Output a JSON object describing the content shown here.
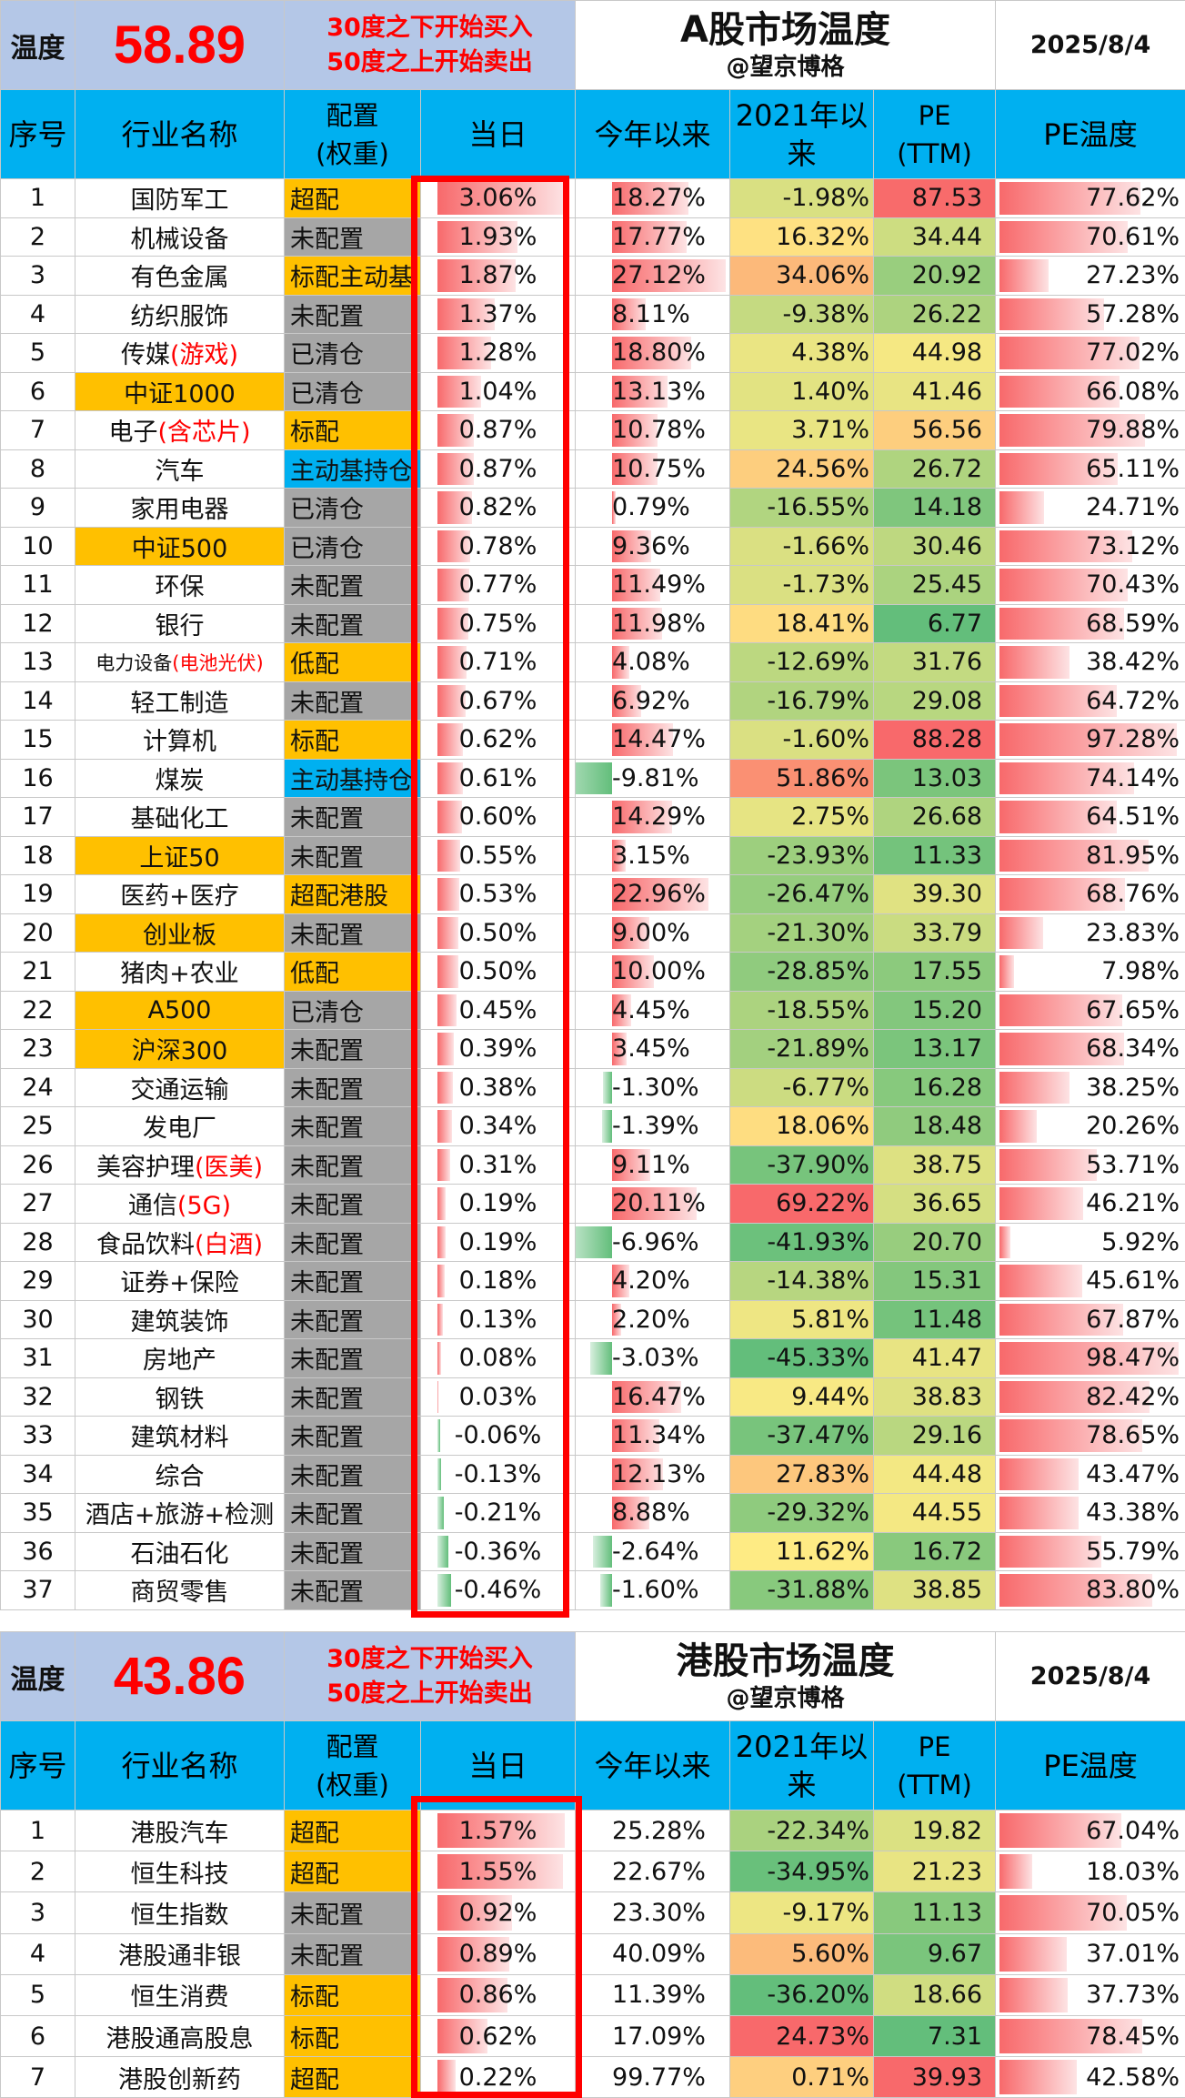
{
  "a_share": {
    "header": {
      "label": "温度",
      "temperature": "58.89",
      "rule_buy": "30度之下开始买入",
      "rule_sell": "50度之上开始卖出",
      "title": "A股市场温度",
      "author": "@望京博格",
      "date": "2025/8/4"
    },
    "columns": [
      "序号",
      "行业名称",
      "配置\n(权重)",
      "当日",
      "今年以来",
      "2021年以来",
      "PE\n(TTM)",
      "PE温度"
    ],
    "rows": [
      {
        "no": "1",
        "name": "国防军工",
        "cfg": "超配",
        "day": "3.06%",
        "ytd": "18.27%",
        "since2021": "-1.98%",
        "pe": "87.53",
        "pe_temp": "77.62%",
        "cfg_color": "gold",
        "name_hl": false
      },
      {
        "no": "2",
        "name": "机械设备",
        "cfg": "未配置",
        "day": "1.93%",
        "ytd": "17.77%",
        "since2021": "16.32%",
        "pe": "34.44",
        "pe_temp": "70.61%",
        "cfg_color": "gray",
        "name_hl": false
      },
      {
        "no": "3",
        "name": "有色金属",
        "cfg": "标配主动基",
        "day": "1.87%",
        "ytd": "27.12%",
        "since2021": "34.06%",
        "pe": "20.92",
        "pe_temp": "27.23%",
        "cfg_color": "gold",
        "name_hl": false
      },
      {
        "no": "4",
        "name": "纺织服饰",
        "cfg": "未配置",
        "day": "1.37%",
        "ytd": "8.11%",
        "since2021": "-9.38%",
        "pe": "26.22",
        "pe_temp": "57.28%",
        "cfg_color": "gray",
        "name_hl": false
      },
      {
        "no": "5",
        "name": "传媒",
        "name_red": "(游戏)",
        "cfg": "已清仓",
        "day": "1.28%",
        "ytd": "18.80%",
        "since2021": "4.38%",
        "pe": "44.98",
        "pe_temp": "77.02%",
        "cfg_color": "gray",
        "name_hl": false
      },
      {
        "no": "6",
        "name": "中证1000",
        "cfg": "已清仓",
        "day": "1.04%",
        "ytd": "13.13%",
        "since2021": "1.40%",
        "pe": "41.46",
        "pe_temp": "66.08%",
        "cfg_color": "gray",
        "name_hl": true
      },
      {
        "no": "7",
        "name": "电子",
        "name_red": "(含芯片)",
        "cfg": "标配",
        "day": "0.87%",
        "ytd": "10.78%",
        "since2021": "3.71%",
        "pe": "56.56",
        "pe_temp": "79.88%",
        "cfg_color": "gold",
        "name_hl": false
      },
      {
        "no": "8",
        "name": "汽车",
        "cfg": "主动基持仓",
        "day": "0.87%",
        "ytd": "10.75%",
        "since2021": "24.56%",
        "pe": "26.72",
        "pe_temp": "65.11%",
        "cfg_color": "blue",
        "name_hl": false
      },
      {
        "no": "9",
        "name": "家用电器",
        "cfg": "已清仓",
        "day": "0.82%",
        "ytd": "0.79%",
        "since2021": "-16.55%",
        "pe": "14.18",
        "pe_temp": "24.71%",
        "cfg_color": "gray",
        "name_hl": false
      },
      {
        "no": "10",
        "name": "中证500",
        "cfg": "已清仓",
        "day": "0.78%",
        "ytd": "9.36%",
        "since2021": "-1.66%",
        "pe": "30.46",
        "pe_temp": "73.12%",
        "cfg_color": "gray",
        "name_hl": true
      },
      {
        "no": "11",
        "name": "环保",
        "cfg": "未配置",
        "day": "0.77%",
        "ytd": "11.49%",
        "since2021": "-1.73%",
        "pe": "25.45",
        "pe_temp": "70.43%",
        "cfg_color": "gray",
        "name_hl": false
      },
      {
        "no": "12",
        "name": "银行",
        "cfg": "未配置",
        "day": "0.75%",
        "ytd": "11.98%",
        "since2021": "18.41%",
        "pe": "6.77",
        "pe_temp": "68.59%",
        "cfg_color": "gray",
        "name_hl": false
      },
      {
        "no": "13",
        "name": "电力设备",
        "name_red": "(电池光伏)",
        "cfg": "低配",
        "day": "0.71%",
        "ytd": "4.08%",
        "since2021": "-12.69%",
        "pe": "31.76",
        "pe_temp": "38.42%",
        "cfg_color": "gold",
        "name_hl": false,
        "small": true
      },
      {
        "no": "14",
        "name": "轻工制造",
        "cfg": "未配置",
        "day": "0.67%",
        "ytd": "6.92%",
        "since2021": "-16.79%",
        "pe": "29.08",
        "pe_temp": "64.72%",
        "cfg_color": "gray",
        "name_hl": false
      },
      {
        "no": "15",
        "name": "计算机",
        "cfg": "标配",
        "day": "0.62%",
        "ytd": "14.47%",
        "since2021": "-1.60%",
        "pe": "88.28",
        "pe_temp": "97.28%",
        "cfg_color": "gold",
        "name_hl": false
      },
      {
        "no": "16",
        "name": "煤炭",
        "cfg": "主动基持仓",
        "day": "0.61%",
        "ytd": "-9.81%",
        "since2021": "51.86%",
        "pe": "13.03",
        "pe_temp": "74.14%",
        "cfg_color": "blue",
        "name_hl": false
      },
      {
        "no": "17",
        "name": "基础化工",
        "cfg": "未配置",
        "day": "0.60%",
        "ytd": "14.29%",
        "since2021": "2.75%",
        "pe": "26.68",
        "pe_temp": "64.51%",
        "cfg_color": "gray",
        "name_hl": false
      },
      {
        "no": "18",
        "name": "上证50",
        "cfg": "未配置",
        "day": "0.55%",
        "ytd": "3.15%",
        "since2021": "-23.93%",
        "pe": "11.33",
        "pe_temp": "81.95%",
        "cfg_color": "gray",
        "name_hl": true
      },
      {
        "no": "19",
        "name": "医药+医疗",
        "cfg": "超配港股",
        "day": "0.53%",
        "ytd": "22.96%",
        "since2021": "-26.47%",
        "pe": "39.30",
        "pe_temp": "68.76%",
        "cfg_color": "gold",
        "name_hl": false
      },
      {
        "no": "20",
        "name": "创业板",
        "cfg": "未配置",
        "day": "0.50%",
        "ytd": "9.00%",
        "since2021": "-21.30%",
        "pe": "33.79",
        "pe_temp": "23.83%",
        "cfg_color": "gray",
        "name_hl": true
      },
      {
        "no": "21",
        "name": "猪肉+农业",
        "cfg": "低配",
        "day": "0.50%",
        "ytd": "10.00%",
        "since2021": "-28.85%",
        "pe": "17.55",
        "pe_temp": "7.98%",
        "cfg_color": "gold",
        "name_hl": false
      },
      {
        "no": "22",
        "name": "A500",
        "cfg": "已清仓",
        "day": "0.45%",
        "ytd": "4.45%",
        "since2021": "-18.55%",
        "pe": "15.20",
        "pe_temp": "67.65%",
        "cfg_color": "gray",
        "name_hl": true
      },
      {
        "no": "23",
        "name": "沪深300",
        "cfg": "未配置",
        "day": "0.39%",
        "ytd": "3.45%",
        "since2021": "-21.89%",
        "pe": "13.17",
        "pe_temp": "68.34%",
        "cfg_color": "gray",
        "name_hl": true
      },
      {
        "no": "24",
        "name": "交通运输",
        "cfg": "未配置",
        "day": "0.38%",
        "ytd": "-1.30%",
        "since2021": "-6.77%",
        "pe": "16.28",
        "pe_temp": "38.25%",
        "cfg_color": "gray",
        "name_hl": false
      },
      {
        "no": "25",
        "name": "发电厂",
        "cfg": "未配置",
        "day": "0.34%",
        "ytd": "-1.39%",
        "since2021": "18.06%",
        "pe": "18.48",
        "pe_temp": "20.26%",
        "cfg_color": "gray",
        "name_hl": false
      },
      {
        "no": "26",
        "name": "美容护理",
        "name_red": "(医美)",
        "cfg": "未配置",
        "day": "0.31%",
        "ytd": "9.11%",
        "since2021": "-37.90%",
        "pe": "38.75",
        "pe_temp": "53.71%",
        "cfg_color": "gray",
        "name_hl": false
      },
      {
        "no": "27",
        "name": "通信",
        "name_red": "(5G)",
        "cfg": "未配置",
        "day": "0.19%",
        "ytd": "20.11%",
        "since2021": "69.22%",
        "pe": "36.65",
        "pe_temp": "46.21%",
        "cfg_color": "gray",
        "name_hl": false
      },
      {
        "no": "28",
        "name": "食品饮料",
        "name_red": "(白酒)",
        "cfg": "未配置",
        "day": "0.19%",
        "ytd": "-6.96%",
        "since2021": "-41.93%",
        "pe": "20.70",
        "pe_temp": "5.92%",
        "cfg_color": "gray",
        "name_hl": false
      },
      {
        "no": "29",
        "name": "证券+保险",
        "cfg": "未配置",
        "day": "0.18%",
        "ytd": "4.20%",
        "since2021": "-14.38%",
        "pe": "15.31",
        "pe_temp": "45.61%",
        "cfg_color": "gray",
        "name_hl": false
      },
      {
        "no": "30",
        "name": "建筑装饰",
        "cfg": "未配置",
        "day": "0.13%",
        "ytd": "2.20%",
        "since2021": "5.81%",
        "pe": "11.48",
        "pe_temp": "67.87%",
        "cfg_color": "gray",
        "name_hl": false
      },
      {
        "no": "31",
        "name": "房地产",
        "cfg": "未配置",
        "day": "0.08%",
        "ytd": "-3.03%",
        "since2021": "-45.33%",
        "pe": "41.47",
        "pe_temp": "98.47%",
        "cfg_color": "gray",
        "name_hl": false
      },
      {
        "no": "32",
        "name": "钢铁",
        "cfg": "未配置",
        "day": "0.03%",
        "ytd": "16.47%",
        "since2021": "9.44%",
        "pe": "38.83",
        "pe_temp": "82.42%",
        "cfg_color": "gray",
        "name_hl": false
      },
      {
        "no": "33",
        "name": "建筑材料",
        "cfg": "未配置",
        "day": "-0.06%",
        "ytd": "11.34%",
        "since2021": "-37.47%",
        "pe": "29.16",
        "pe_temp": "78.65%",
        "cfg_color": "gray",
        "name_hl": false
      },
      {
        "no": "34",
        "name": "综合",
        "cfg": "未配置",
        "day": "-0.13%",
        "ytd": "12.13%",
        "since2021": "27.83%",
        "pe": "44.48",
        "pe_temp": "43.47%",
        "cfg_color": "gray",
        "name_hl": false
      },
      {
        "no": "35",
        "name": "酒店+旅游+检测",
        "cfg": "未配置",
        "day": "-0.21%",
        "ytd": "8.88%",
        "since2021": "-29.32%",
        "pe": "44.55",
        "pe_temp": "43.38%",
        "cfg_color": "gray",
        "name_hl": false
      },
      {
        "no": "36",
        "name": "石油石化",
        "cfg": "未配置",
        "day": "-0.36%",
        "ytd": "-2.64%",
        "since2021": "11.62%",
        "pe": "16.72",
        "pe_temp": "55.79%",
        "cfg_color": "gray",
        "name_hl": false
      },
      {
        "no": "37",
        "name": "商贸零售",
        "cfg": "未配置",
        "day": "-0.46%",
        "ytd": "-1.60%",
        "since2021": "-31.88%",
        "pe": "38.85",
        "pe_temp": "83.80%",
        "cfg_color": "gray",
        "name_hl": false
      }
    ]
  },
  "hk_share": {
    "header": {
      "label": "温度",
      "temperature": "43.86",
      "rule_buy": "30度之下开始买入",
      "rule_sell": "50度之上开始卖出",
      "title": "港股市场温度",
      "author": "@望京博格",
      "date": "2025/8/4"
    },
    "columns": [
      "序号",
      "行业名称",
      "配置\n(权重)",
      "当日",
      "今年以来",
      "2021年以来",
      "PE\n(TTM)",
      "PE温度"
    ],
    "rows": [
      {
        "no": "1",
        "name": "港股汽车",
        "cfg": "超配",
        "day": "1.57%",
        "ytd": "25.28%",
        "since2021": "-22.34%",
        "pe": "19.82",
        "pe_temp": "67.04%",
        "cfg_color": "gold"
      },
      {
        "no": "2",
        "name": "恒生科技",
        "cfg": "超配",
        "day": "1.55%",
        "ytd": "22.67%",
        "since2021": "-34.95%",
        "pe": "21.23",
        "pe_temp": "18.03%",
        "cfg_color": "gold"
      },
      {
        "no": "3",
        "name": "恒生指数",
        "cfg": "未配置",
        "day": "0.92%",
        "ytd": "23.30%",
        "since2021": "-9.17%",
        "pe": "11.13",
        "pe_temp": "70.05%",
        "cfg_color": "gray"
      },
      {
        "no": "4",
        "name": "港股通非银",
        "cfg": "未配置",
        "day": "0.89%",
        "ytd": "40.09%",
        "since2021": "5.60%",
        "pe": "9.67",
        "pe_temp": "37.01%",
        "cfg_color": "gray"
      },
      {
        "no": "5",
        "name": "恒生消费",
        "cfg": "标配",
        "day": "0.86%",
        "ytd": "11.39%",
        "since2021": "-36.20%",
        "pe": "18.66",
        "pe_temp": "37.73%",
        "cfg_color": "gold"
      },
      {
        "no": "6",
        "name": "港股通高股息",
        "cfg": "标配",
        "day": "0.62%",
        "ytd": "17.09%",
        "since2021": "24.73%",
        "pe": "7.31",
        "pe_temp": "78.45%",
        "cfg_color": "gold"
      },
      {
        "no": "7",
        "name": "港股创新药",
        "cfg": "超配",
        "day": "0.22%",
        "ytd": "99.77%",
        "since2021": "0.71%",
        "pe": "39.93",
        "pe_temp": "42.58%",
        "cfg_color": "gold"
      }
    ]
  }
}
